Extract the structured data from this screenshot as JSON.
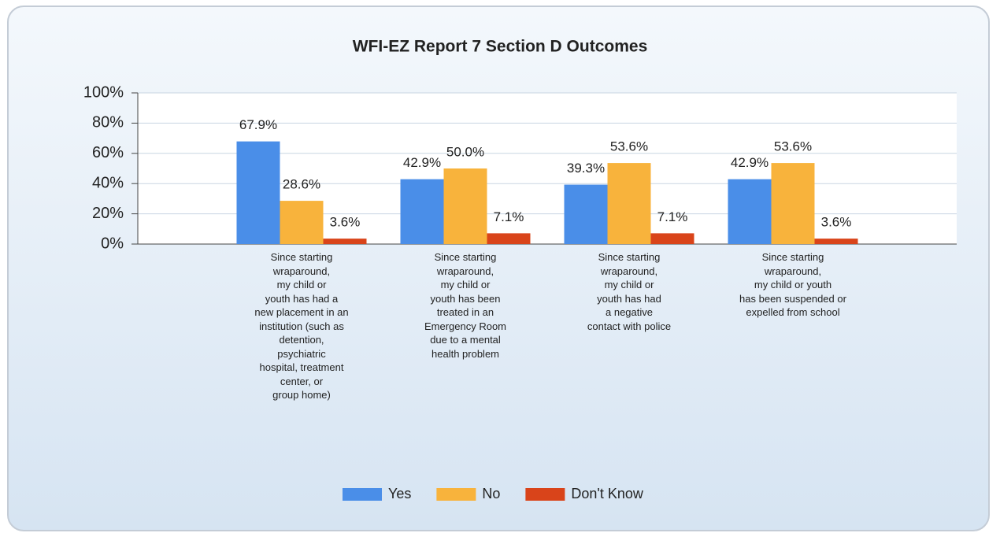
{
  "chart_data": {
    "type": "bar",
    "title": "WFI-EZ Report 7 Section D Outcomes",
    "categories": [
      "Since starting\nwraparound,\nmy child or\nyouth has had a\nnew placement in an\ninstitution (such as\ndetention,\npsychiatric\nhospital, treatment\ncenter, or\ngroup home)",
      "Since starting\nwraparound,\nmy child or\nyouth has been\ntreated in an\nEmergency Room\ndue to a mental\nhealth problem",
      "Since starting\nwraparound,\nmy child or\nyouth has had\na negative\ncontact with police",
      "Since starting\nwraparound,\nmy child or youth\nhas been suspended or\nexpelled from school"
    ],
    "series": [
      {
        "name": "Yes",
        "color": "#4a8ee8",
        "values": [
          67.9,
          42.9,
          39.3,
          42.9
        ],
        "value_labels": [
          "67.9%",
          "42.9%",
          "39.3%",
          "42.9%"
        ]
      },
      {
        "name": "No",
        "color": "#f8b33c",
        "values": [
          28.6,
          50.0,
          53.6,
          53.6
        ],
        "value_labels": [
          "28.6%",
          "50.0%",
          "53.6%",
          "53.6%"
        ]
      },
      {
        "name": "Don't Know",
        "color": "#d9441a",
        "values": [
          3.6,
          7.1,
          7.1,
          3.6
        ],
        "value_labels": [
          "3.6%",
          "7.1%",
          "7.1%",
          "3.6%"
        ]
      }
    ],
    "ylim": [
      0,
      100
    ],
    "yticks": [
      {
        "value": 0,
        "label": "0%"
      },
      {
        "value": 20,
        "label": "20%"
      },
      {
        "value": 40,
        "label": "40%"
      },
      {
        "value": 60,
        "label": "60%"
      },
      {
        "value": 80,
        "label": "80%"
      },
      {
        "value": 100,
        "label": "100%"
      }
    ],
    "grid": true,
    "legend": "bottom"
  }
}
